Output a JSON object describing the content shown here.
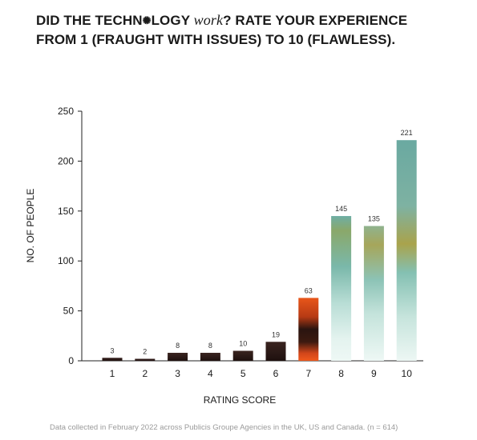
{
  "header": {
    "title_part1": "DID THE TECHN",
    "title_glyph": "✺",
    "title_part2": "LOGY ",
    "title_italic": "work",
    "title_part3": "? RATE YOUR EXPERIENCE",
    "title_line2": "FROM 1 (FRAUGHT WITH ISSUES) TO 10 (FLAWLESS)."
  },
  "footnote": "Data collected in February 2022 across Publicis Groupe Agencies in the UK, US and Canada. (n = 614)",
  "colors": {
    "dark_bar": "#2a1816",
    "orange": "#e0521a",
    "teal": "#76b8ac",
    "olive": "#a8a44c",
    "axis": "#222222"
  },
  "chart_data": {
    "type": "bar",
    "categories": [
      "1",
      "2",
      "3",
      "4",
      "5",
      "6",
      "7",
      "8",
      "9",
      "10"
    ],
    "values": [
      3,
      2,
      8,
      8,
      10,
      19,
      63,
      145,
      135,
      221
    ],
    "data_labels": [
      "3",
      "2",
      "8",
      "8",
      "10",
      "19",
      "63",
      "145",
      "135",
      "221"
    ],
    "xlabel": "RATING SCORE",
    "ylabel": "NO. OF PEOPLE",
    "ylim": [
      0,
      250
    ],
    "yticks": [
      "0",
      "50",
      "100",
      "150",
      "200",
      "250"
    ],
    "grid": false,
    "legend": "none"
  }
}
